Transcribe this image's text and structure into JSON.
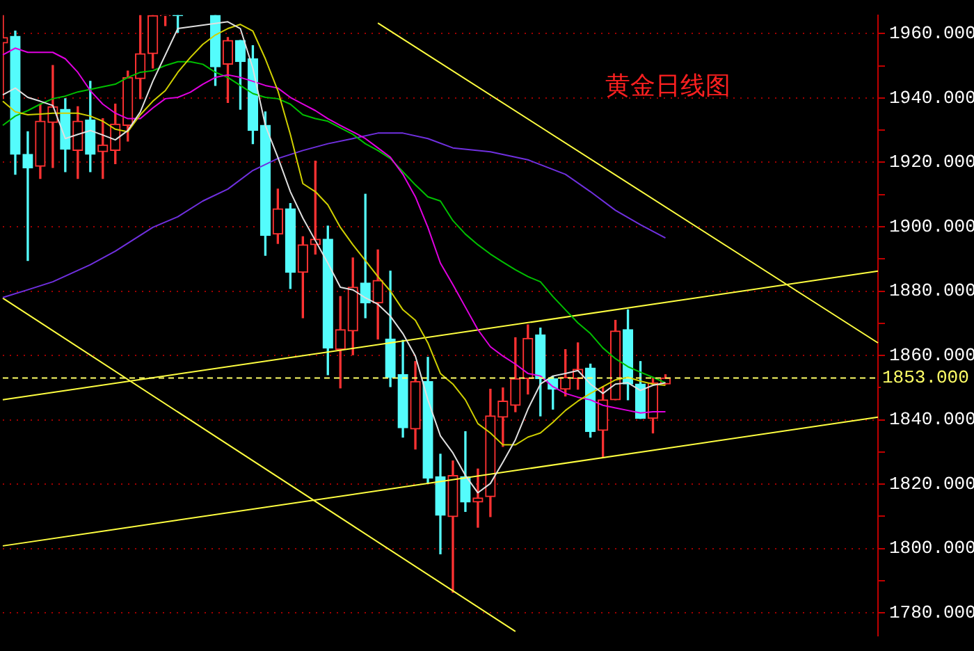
{
  "chart_data": {
    "type": "candlestick",
    "title": "黄金日线图",
    "categories": [
      null,
      null,
      null,
      null,
      null,
      null,
      null,
      null,
      null,
      null,
      null,
      null,
      null,
      null,
      null,
      null,
      null,
      null,
      null,
      null,
      null,
      null,
      null,
      null,
      null,
      null,
      null,
      null,
      null,
      null,
      null,
      null,
      null,
      null,
      null,
      null,
      null,
      null,
      null,
      null,
      null,
      null,
      null,
      null,
      null,
      null,
      null,
      null,
      null,
      null,
      null,
      null,
      null,
      null,
      null,
      null,
      null,
      null,
      null,
      null,
      null,
      null,
      null,
      null,
      null,
      null,
      null,
      null,
      null,
      null,
      null
    ],
    "ohlc": [
      [
        1957.1,
        1965.7,
        1939.8,
        1958.8
      ],
      [
        1959.2,
        1960.8,
        1916.3,
        1922.5
      ],
      [
        1922.5,
        1929.5,
        1889.5,
        1918.3
      ],
      [
        1918.8,
        1938.1,
        1915.0,
        1932.8
      ],
      [
        1932.4,
        1950.1,
        1918.4,
        1937.3
      ],
      [
        1936.5,
        1939.8,
        1917.1,
        1924.1
      ],
      [
        1923.7,
        1937.3,
        1915.0,
        1932.8
      ],
      [
        1933.2,
        1945.2,
        1917.1,
        1922.5
      ],
      [
        1923.3,
        1933.6,
        1915.0,
        1925.4
      ],
      [
        1923.7,
        1938.1,
        1919.6,
        1931.9
      ],
      [
        1931.5,
        1948.4,
        1926.6,
        1946.4
      ],
      [
        1946.0,
        1965.7,
        1939.8,
        1953.8
      ],
      [
        1953.8,
        1965.7,
        1949.3,
        1965.6
      ],
      [
        1965.6,
        1965.7,
        1962.5,
        1965.7
      ],
      [
        1965.7,
        1965.7,
        1960.4,
        1965.6
      ],
      null,
      null,
      [
        1965.7,
        1965.7,
        1943.9,
        1949.7
      ],
      [
        1950.5,
        1958.8,
        1938.6,
        1957.9
      ],
      [
        1957.9,
        1957.9,
        1936.5,
        1951.3
      ],
      [
        1952.2,
        1956.3,
        1925.8,
        1929.9
      ],
      [
        1931.5,
        1935.7,
        1891.1,
        1897.3
      ],
      [
        1897.7,
        1911.7,
        1894.8,
        1905.6
      ],
      [
        1905.6,
        1907.2,
        1880.8,
        1885.8
      ],
      [
        1885.8,
        1896.9,
        1871.7,
        1894.4
      ],
      [
        1894.4,
        1920.4,
        1891.5,
        1896.1
      ],
      [
        1896.1,
        1900.2,
        1854.0,
        1862.3
      ],
      [
        1861.9,
        1878.3,
        1849.9,
        1868.0
      ],
      [
        1867.6,
        1890.3,
        1860.2,
        1881.2
      ],
      [
        1882.5,
        1910.1,
        1871.7,
        1876.3
      ],
      [
        1876.3,
        1892.8,
        1865.1,
        1883.3
      ],
      [
        1865.1,
        1886.2,
        1850.3,
        1853.2
      ],
      [
        1854.0,
        1864.7,
        1834.6,
        1837.5
      ],
      [
        1837.1,
        1858.1,
        1830.9,
        1851.9
      ],
      [
        1851.9,
        1859.4,
        1820.2,
        1821.9
      ],
      [
        1822.3,
        1829.3,
        1798.3,
        1810.3
      ],
      [
        1809.9,
        1827.2,
        1786.4,
        1822.7
      ],
      [
        1822.3,
        1836.3,
        1811.5,
        1814.4
      ],
      [
        1814.4,
        1824.7,
        1806.6,
        1815.7
      ],
      [
        1816.1,
        1849.5,
        1809.9,
        1841.2
      ],
      [
        1840.8,
        1849.9,
        1831.7,
        1845.8
      ],
      [
        1844.5,
        1865.5,
        1842.5,
        1852.8
      ],
      [
        1852.8,
        1869.5,
        1848.0,
        1865.3
      ],
      [
        1866.4,
        1868.5,
        1841.2,
        1852.8
      ],
      [
        1852.8,
        1853.6,
        1843.3,
        1849.5
      ],
      [
        1849.5,
        1861.8,
        1847.4,
        1853.2
      ],
      [
        1852.8,
        1863.9,
        1849.5,
        1855.7
      ],
      [
        1856.1,
        1857.3,
        1834.6,
        1836.3
      ],
      [
        1836.7,
        1850.3,
        1828.5,
        1846.2
      ],
      [
        1846.2,
        1870.9,
        1846.2,
        1867.6
      ],
      [
        1868.0,
        1874.2,
        1846.2,
        1851.1
      ],
      [
        1851.1,
        1858.1,
        1840.4,
        1840.4
      ],
      [
        1840.4,
        1853.0,
        1835.9,
        1851.5
      ],
      [
        1851.1,
        1854.0,
        1851.1,
        1853.0
      ],
      null,
      null,
      null,
      null,
      null,
      null,
      null,
      null,
      null,
      null,
      null,
      null,
      null,
      null,
      null,
      null,
      null
    ],
    "colors": [
      "#ff3232",
      "#54fcfc",
      "#54fcfc",
      "#ff3232",
      "#ff3232",
      "#54fcfc",
      "#ff3232",
      "#54fcfc",
      "#ff3232",
      "#ff3232",
      "#ff3232",
      "#ff3232",
      "#ff3232",
      "#ff3232",
      "#54fcfc",
      null,
      null,
      "#54fcfc",
      "#ff3232",
      "#54fcfc",
      "#54fcfc",
      "#54fcfc",
      "#ff3232",
      "#54fcfc",
      "#ff3232",
      "#ff3232",
      "#54fcfc",
      "#ff3232",
      "#ff3232",
      "#54fcfc",
      "#ff3232",
      "#54fcfc",
      "#54fcfc",
      "#ff3232",
      "#54fcfc",
      "#54fcfc",
      "#ff3232",
      "#54fcfc",
      "#ff3232",
      "#ff3232",
      "#ff3232",
      "#ff3232",
      "#ff3232",
      "#54fcfc",
      "#54fcfc",
      "#ff3232",
      "#ff3232",
      "#54fcfc",
      "#ff3232",
      "#ff3232",
      "#54fcfc",
      "#54fcfc",
      "#ff3232",
      "#ff3232",
      null,
      null,
      null,
      null,
      null,
      null,
      null,
      null,
      null,
      null,
      null,
      null,
      null,
      null,
      null,
      null,
      null
    ],
    "series": [
      {
        "type": "line",
        "color": "#e0e0e0",
        "values": [
          1941.0,
          1943.1,
          1940.2,
          1939.0,
          1937.7,
          1927.4,
          1928.7,
          1929.9,
          1928.5,
          1927.0,
          1929.9,
          1935.7,
          1945.2,
          1953.4,
          1961.6,
          null,
          null,
          null,
          1963.7,
          1961.6,
          1949.3,
          1931.5,
          1921.6,
          1910.9,
          1902.7,
          1895.7,
          1888.7,
          1881.2,
          1880.4,
          1877.9,
          1875.9,
          1872.2,
          1866.8,
          1859.8,
          1846.2,
          1835.0,
          1829.7,
          1822.7,
          1817.3,
          1820.2,
          1826.8,
          1833.8,
          1843.3,
          1851.1,
          1853.6,
          1854.4,
          1855.3,
          1851.1,
          1848.2,
          1851.1,
          1851.5,
          1849.1,
          1850.7,
          1851.5,
          null,
          null,
          null,
          null,
          null,
          null,
          null,
          null,
          null,
          null,
          null,
          null,
          null,
          null,
          null,
          null,
          null
        ]
      },
      {
        "type": "line",
        "color": "#d0d000",
        "values": [
          1939.0,
          1935.7,
          1934.8,
          1935.0,
          1935.3,
          1935.3,
          1935.3,
          1934.4,
          1932.8,
          1930.3,
          1929.5,
          1934.8,
          1939.0,
          1942.3,
          1948.0,
          1952.6,
          1956.7,
          1959.6,
          1961.6,
          1962.9,
          1960.8,
          1952.2,
          1942.3,
          1928.7,
          1913.4,
          1910.9,
          1906.8,
          1899.8,
          1894.4,
          1889.5,
          1884.5,
          1880.0,
          1874.2,
          1870.9,
          1863.9,
          1854.4,
          1851.1,
          1846.2,
          1838.8,
          1835.9,
          1832.2,
          1832.2,
          1834.6,
          1835.9,
          1839.2,
          1842.9,
          1845.8,
          1848.2,
          1850.3,
          1852.4,
          1853.2,
          1852.0,
          1851.1,
          1850.7,
          null,
          null,
          null,
          null,
          null,
          null,
          null,
          null,
          null,
          null,
          null,
          null,
          null,
          null,
          null,
          null,
          null
        ]
      },
      {
        "type": "line",
        "color": "#e000e0",
        "values": [
          1953.4,
          1955.5,
          1954.2,
          1954.2,
          1954.2,
          1952.2,
          1948.0,
          1942.3,
          1938.1,
          1935.3,
          1933.6,
          1933.6,
          1936.9,
          1939.8,
          1940.2,
          1941.8,
          1944.3,
          1946.4,
          1947.2,
          1946.4,
          1945.2,
          1943.9,
          1943.1,
          1940.2,
          1938.1,
          1936.1,
          1933.6,
          1931.5,
          1929.5,
          1927.4,
          1924.5,
          1921.6,
          1916.3,
          1909.3,
          1899.8,
          1888.7,
          1882.0,
          1875.0,
          1868.0,
          1862.7,
          1859.8,
          1857.3,
          1854.4,
          1853.6,
          1850.3,
          1848.2,
          1847.0,
          1846.2,
          1844.5,
          1843.7,
          1842.9,
          1842.1,
          1842.5,
          1842.5,
          null,
          null,
          null,
          null,
          null,
          null,
          null,
          null,
          null,
          null,
          null,
          null,
          null,
          null,
          null,
          null,
          null
        ]
      },
      {
        "type": "line",
        "color": "#00c000",
        "values": [
          1931.5,
          1934.4,
          1936.1,
          1938.1,
          1939.8,
          1940.6,
          1941.9,
          1942.7,
          1943.5,
          1944.3,
          1946.4,
          1948.0,
          1948.5,
          1950.1,
          1951.3,
          1951.3,
          1950.5,
          1948.0,
          1946.4,
          1943.9,
          1941.4,
          1940.2,
          1939.8,
          1938.1,
          1934.8,
          1933.6,
          1932.8,
          1930.7,
          1928.7,
          1925.8,
          1923.7,
          1921.2,
          1917.1,
          1913.0,
          1909.3,
          1908.0,
          1901.9,
          1897.7,
          1894.4,
          1891.5,
          1889.0,
          1886.6,
          1884.5,
          1882.9,
          1878.3,
          1874.2,
          1870.1,
          1866.8,
          1862.3,
          1859.0,
          1856.5,
          1854.8,
          1853.2,
          1851.5,
          null,
          null,
          null,
          null,
          null,
          null,
          null,
          null,
          null,
          null,
          null,
          null,
          null,
          null,
          null,
          null,
          null
        ]
      },
      {
        "type": "line",
        "color": "#7030e0",
        "values": [
          1878.0,
          null,
          1880.4,
          null,
          1882.9,
          null,
          null,
          1888.2,
          null,
          1892.4,
          null,
          null,
          1899.8,
          null,
          1903.1,
          null,
          1908.0,
          null,
          1911.7,
          null,
          1917.5,
          null,
          1921.2,
          null,
          1923.7,
          null,
          1925.8,
          null,
          1927.4,
          null,
          1929.1,
          null,
          1929.1,
          null,
          1927.4,
          null,
          1924.5,
          null,
          null,
          1923.3,
          null,
          null,
          1920.8,
          null,
          null,
          1916.3,
          null,
          1910.9,
          null,
          1905.1,
          null,
          1900.6,
          null,
          1896.5,
          null,
          null,
          null,
          null,
          null,
          null,
          null,
          null,
          null,
          null,
          null,
          null,
          null,
          null,
          null,
          null,
          null
        ]
      },
      {
        "type": "line",
        "color": "#ffff40",
        "values": [
          null,
          null,
          null,
          null,
          null,
          null,
          null,
          null,
          null,
          null,
          null,
          null,
          null,
          null,
          null,
          null,
          null,
          null,
          null,
          null,
          null,
          null,
          null,
          null,
          null,
          null,
          null,
          null,
          null,
          null,
          1963.3,
          null,
          null,
          null,
          null,
          null,
          null,
          null,
          null,
          null,
          null,
          null,
          null,
          null,
          null,
          null,
          null,
          null,
          null,
          null,
          null,
          null,
          null,
          null,
          null,
          null,
          null,
          null,
          null,
          null,
          null,
          null,
          null,
          null,
          null,
          null,
          null,
          null,
          null,
          null,
          1863.9
        ]
      },
      {
        "type": "line",
        "color": "#ffff40",
        "values": [
          1877.8,
          null,
          null,
          null,
          null,
          null,
          null,
          null,
          null,
          null,
          null,
          null,
          null,
          null,
          null,
          null,
          null,
          null,
          null,
          null,
          null,
          null,
          null,
          null,
          null,
          null,
          null,
          null,
          null,
          null,
          null,
          null,
          null,
          null,
          null,
          null,
          null,
          null,
          null,
          null,
          null,
          1774.2,
          null,
          null,
          null,
          null,
          null,
          null,
          null,
          null,
          null,
          null,
          null,
          null,
          null,
          null,
          null,
          null,
          null,
          null,
          null,
          null,
          null,
          null,
          null,
          null,
          null,
          null,
          null,
          null,
          null
        ]
      },
      {
        "type": "line",
        "color": "#ffff40",
        "values": [
          1846.2,
          null,
          null,
          null,
          null,
          null,
          null,
          null,
          null,
          null,
          null,
          null,
          null,
          null,
          null,
          null,
          null,
          null,
          null,
          null,
          null,
          null,
          null,
          null,
          null,
          null,
          null,
          null,
          null,
          null,
          null,
          null,
          null,
          null,
          null,
          null,
          null,
          null,
          null,
          null,
          null,
          null,
          null,
          null,
          null,
          null,
          null,
          null,
          null,
          null,
          null,
          null,
          null,
          null,
          null,
          null,
          null,
          null,
          null,
          null,
          null,
          null,
          null,
          null,
          null,
          null,
          null,
          null,
          null,
          null,
          1886.2
        ]
      },
      {
        "type": "line",
        "color": "#ffff40",
        "values": [
          1800.8,
          null,
          null,
          null,
          null,
          null,
          null,
          null,
          null,
          null,
          null,
          null,
          null,
          null,
          null,
          null,
          null,
          null,
          null,
          null,
          null,
          null,
          null,
          null,
          null,
          null,
          null,
          null,
          null,
          null,
          null,
          null,
          null,
          null,
          null,
          null,
          null,
          null,
          null,
          null,
          null,
          null,
          null,
          null,
          null,
          null,
          null,
          null,
          null,
          null,
          null,
          null,
          null,
          null,
          null,
          null,
          null,
          null,
          null,
          null,
          null,
          null,
          null,
          null,
          null,
          null,
          null,
          null,
          null,
          null,
          1840.8
        ]
      }
    ],
    "ylim": [
      1772.8,
      1965.8
    ],
    "yticks": [
      {
        "value": 1780,
        "label": "1780.000"
      },
      {
        "value": 1790,
        "label": null
      },
      {
        "value": 1800,
        "label": "1800.000"
      },
      {
        "value": 1810,
        "label": null
      },
      {
        "value": 1820,
        "label": "1820.000"
      },
      {
        "value": 1830,
        "label": null
      },
      {
        "value": 1840,
        "label": "1840.000"
      },
      {
        "value": 1850,
        "label": null
      },
      {
        "value": 1860,
        "label": "1860.000"
      },
      {
        "value": 1870,
        "label": null
      },
      {
        "value": 1880,
        "label": "1880.000"
      },
      {
        "value": 1890,
        "label": null
      },
      {
        "value": 1900,
        "label": "1900.000"
      },
      {
        "value": 1910,
        "label": null
      },
      {
        "value": 1920,
        "label": "1920.000"
      },
      {
        "value": 1930,
        "label": null
      },
      {
        "value": 1940,
        "label": "1940.000"
      },
      {
        "value": 1950,
        "label": null
      },
      {
        "value": 1960,
        "label": "1960.000"
      }
    ],
    "grid": "y",
    "ref_lines": [
      {
        "axis": "y",
        "value": 1853,
        "label": "1853.000",
        "color": "#ffff66",
        "line_style": "dashed"
      }
    ]
  }
}
